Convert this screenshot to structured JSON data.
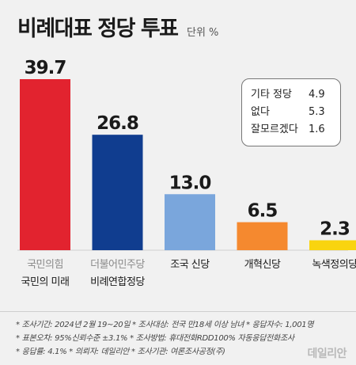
{
  "title": "비례대표 정당 투표",
  "unit": "단위 %",
  "chart_data": {
    "type": "bar",
    "categories": [
      [
        "국민의힘",
        "국민의 미래"
      ],
      [
        "더불어민주당",
        "비례연합정당"
      ],
      [
        "조국 신당"
      ],
      [
        "개혁신당"
      ],
      [
        "녹색정의당"
      ]
    ],
    "values": [
      39.7,
      26.8,
      13.0,
      6.5,
      2.3
    ],
    "value_labels": [
      "39.7",
      "26.8",
      "13.0",
      "6.5",
      "2.3"
    ],
    "colors": [
      "#e2232f",
      "#103d8f",
      "#7aa6dc",
      "#f5892f",
      "#f9d40f"
    ],
    "ylim": [
      0,
      42
    ],
    "grid": false
  },
  "others_box": [
    {
      "label": "기타 정당",
      "value": "4.9"
    },
    {
      "label": "없다",
      "value": "5.3"
    },
    {
      "label": "잘모르겠다",
      "value": "1.6"
    }
  ],
  "footer": {
    "line1": "* 조사기간: 2024년 2월 19~20일  * 조사대상: 전국 만18세 이상 남녀  * 응답자수: 1,001명",
    "line2": "* 표본오차: 95%신뢰수준 ±3.1%  * 조사방법: 휴대전화RDD100% 자동응답전화조사",
    "line3": "* 응답률: 4.1%  * 의뢰자: 데일리안  * 조사기관: 여론조사공정(주)"
  },
  "watermark": "데일리안"
}
